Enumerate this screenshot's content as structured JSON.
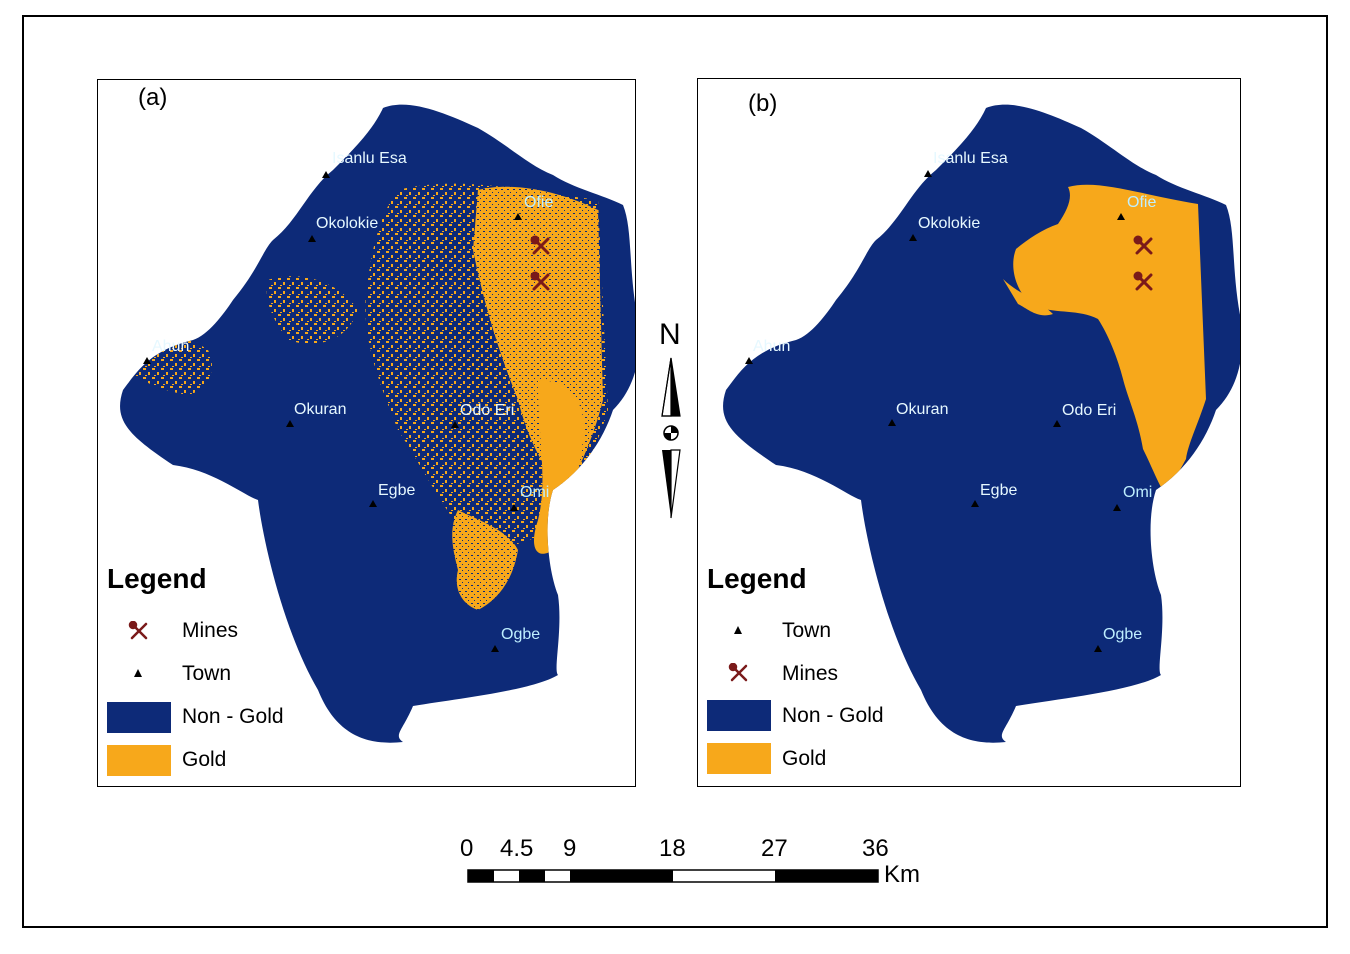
{
  "panels": [
    {
      "label": "(a)",
      "towns": [
        "Isanlu Esa",
        "Okolokie",
        "Ahun",
        "Okuran",
        "Odo Eri",
        "Egbe",
        "Omi",
        "Ogbe",
        "Ofie"
      ],
      "legend": {
        "title": "Legend",
        "items": [
          "Mines",
          "Town",
          "Non - Gold",
          "Gold"
        ]
      }
    },
    {
      "label": "(b)",
      "towns": [
        "Isanlu Esa",
        "Okolokie",
        "Ahun",
        "Okuran",
        "Odo Eri",
        "Egbe",
        "Omi",
        "Ogbe",
        "Ofie"
      ],
      "legend": {
        "title": "Legend",
        "items": [
          "Town",
          "Mines",
          "Non - Gold",
          "Gold"
        ]
      }
    }
  ],
  "north_arrow": "N",
  "scale_bar": {
    "ticks": [
      "0",
      "4.5",
      "9",
      "18",
      "27",
      "36"
    ],
    "unit": "Km"
  },
  "colors": {
    "non_gold": "#0d2a78",
    "gold": "#f7a81b",
    "mine_symbol": "#7a1a1a",
    "town_label": "#e6f8ff"
  },
  "icons": {
    "mine": "pickaxe-hammer-icon",
    "town": "triangle-icon",
    "north": "north-arrow-icon"
  }
}
